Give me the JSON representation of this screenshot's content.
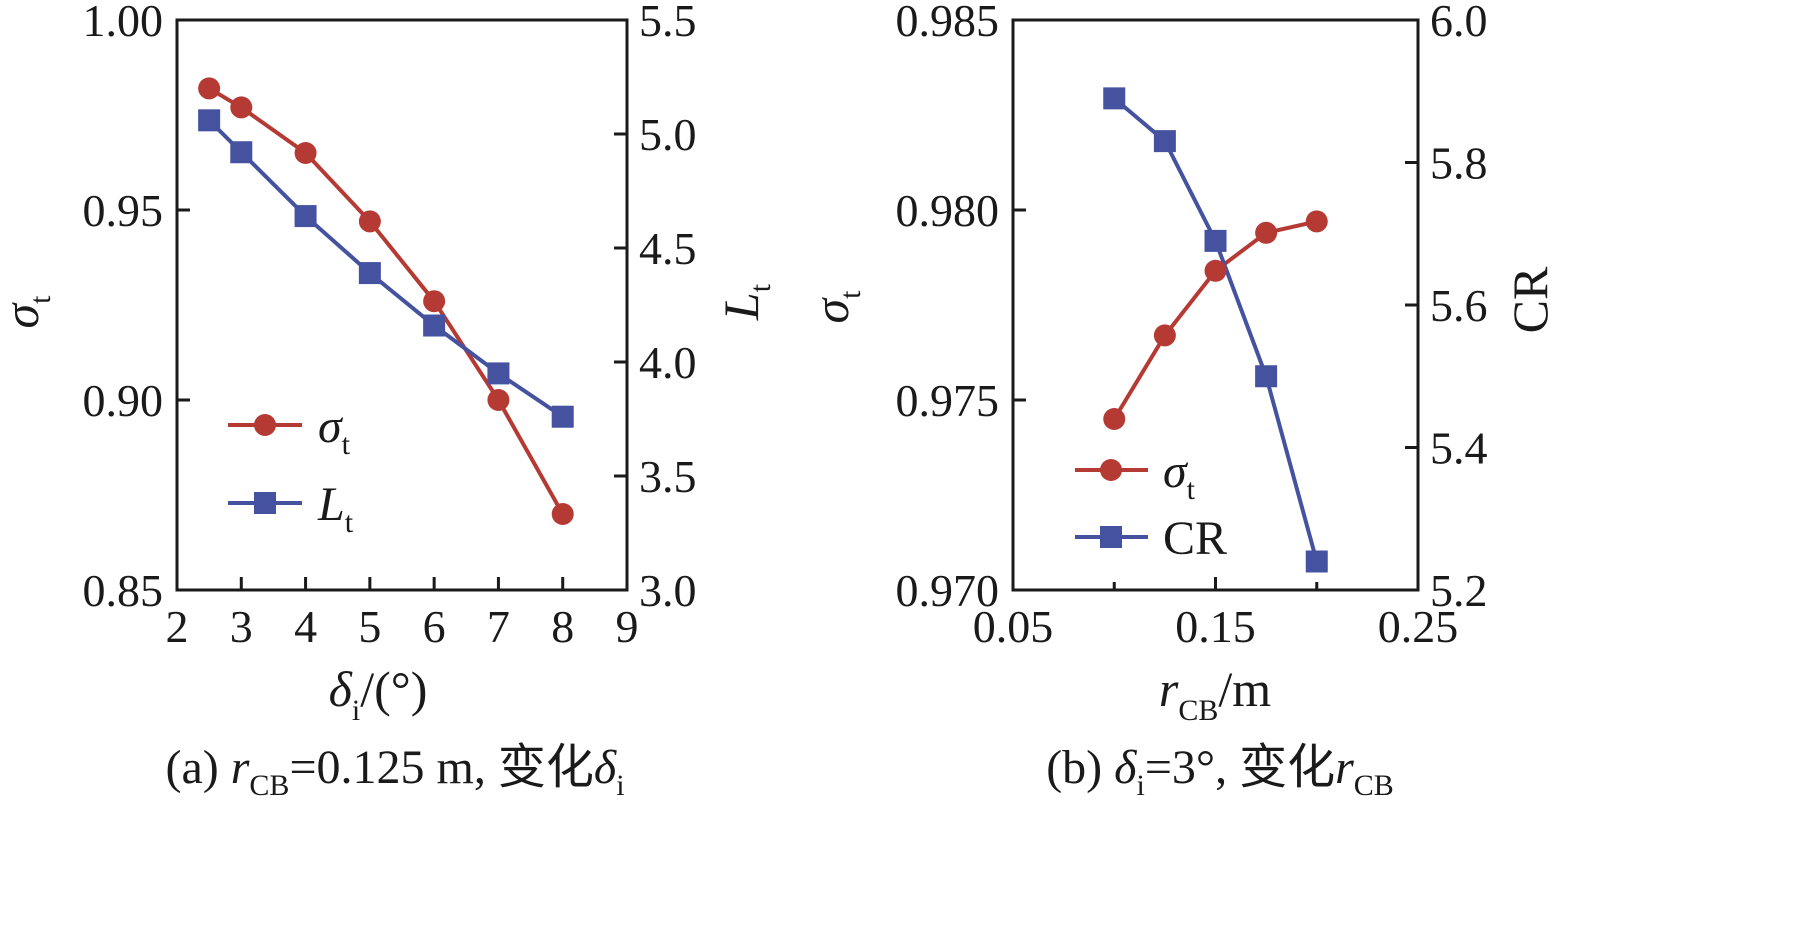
{
  "colors": {
    "red": "#b63a34",
    "blue": "#4452a0",
    "axis": "#1a1a1a"
  },
  "chart_data": [
    {
      "id": "a",
      "type": "line",
      "caption": {
        "prefix": "(a) ",
        "r": "r",
        "r_sub": "CB",
        "eq": "=0.125 m, 变化",
        "delta": "δ",
        "delta_sub": "i"
      },
      "xlabel": {
        "sym": "δ",
        "sub": "i",
        "unit": "/(°)"
      },
      "ylabel_left": {
        "sym": "σ",
        "sub": "t"
      },
      "ylabel_right": {
        "sym": "L",
        "sub": "t"
      },
      "xlim": [
        2,
        9
      ],
      "ylim_left": [
        0.85,
        1.0
      ],
      "ylim_right": [
        3.0,
        5.5
      ],
      "x_ticks": [
        "2",
        "3",
        "4",
        "5",
        "6",
        "7",
        "8",
        "9"
      ],
      "x_tick_values": [
        2,
        3,
        4,
        5,
        6,
        7,
        8,
        9
      ],
      "y_left_ticks": [
        "0.85",
        "0.90",
        "0.95",
        "1.00"
      ],
      "y_left_tick_values": [
        0.85,
        0.9,
        0.95,
        1.0
      ],
      "y_right_ticks": [
        "3.0",
        "3.5",
        "4.0",
        "4.5",
        "5.0",
        "5.5"
      ],
      "y_right_tick_values": [
        3.0,
        3.5,
        4.0,
        4.5,
        5.0,
        5.5
      ],
      "legend": [
        {
          "sym": "σ",
          "sub": "t",
          "marker": "circle"
        },
        {
          "sym": "L",
          "sub": "t",
          "marker": "square"
        }
      ],
      "series": [
        {
          "name": "σt",
          "axis": "left",
          "marker": "circle",
          "color": "#b63a34",
          "x": [
            2.5,
            3,
            4,
            5,
            6,
            7,
            8
          ],
          "values": [
            0.982,
            0.977,
            0.965,
            0.947,
            0.926,
            0.9,
            0.87
          ]
        },
        {
          "name": "Lt",
          "axis": "right",
          "marker": "square",
          "color": "#4452a0",
          "x": [
            2.5,
            3,
            4,
            5,
            6,
            7,
            8
          ],
          "values": [
            5.06,
            4.92,
            4.64,
            4.39,
            4.16,
            3.95,
            3.76
          ]
        }
      ]
    },
    {
      "id": "b",
      "type": "line",
      "caption": {
        "prefix": "(b) ",
        "delta": "δ",
        "delta_sub": "i",
        "eq": "=3°, 变化",
        "r": "r",
        "r_sub": "CB"
      },
      "xlabel": {
        "sym": "r",
        "sub": "CB",
        "unit": "/m"
      },
      "ylabel_left": {
        "sym": "σ",
        "sub": "t"
      },
      "ylabel_right": {
        "sym": "CR",
        "sub": ""
      },
      "xlim": [
        0.05,
        0.25
      ],
      "ylim_left": [
        0.97,
        0.985
      ],
      "ylim_right": [
        5.2,
        6.0
      ],
      "x_ticks": [
        "0.05",
        "0.15",
        "0.25"
      ],
      "x_tick_values": [
        0.05,
        0.15,
        0.25
      ],
      "x_minor_values": [
        0.1,
        0.2
      ],
      "y_left_ticks": [
        "0.970",
        "0.975",
        "0.980",
        "0.985"
      ],
      "y_left_tick_values": [
        0.97,
        0.975,
        0.98,
        0.985
      ],
      "y_right_ticks": [
        "5.2",
        "5.4",
        "5.6",
        "5.8",
        "6.0"
      ],
      "y_right_tick_values": [
        5.2,
        5.4,
        5.6,
        5.8,
        6.0
      ],
      "legend": [
        {
          "sym": "σ",
          "sub": "t",
          "marker": "circle"
        },
        {
          "sym": "CR",
          "sub": "",
          "marker": "square"
        }
      ],
      "series": [
        {
          "name": "σt",
          "axis": "left",
          "marker": "circle",
          "color": "#b63a34",
          "x": [
            0.1,
            0.125,
            0.15,
            0.175,
            0.2
          ],
          "values": [
            0.9745,
            0.9767,
            0.9784,
            0.9794,
            0.9797
          ]
        },
        {
          "name": "CR",
          "axis": "right",
          "marker": "square",
          "color": "#4452a0",
          "x": [
            0.1,
            0.125,
            0.15,
            0.175,
            0.2
          ],
          "values": [
            5.89,
            5.83,
            5.69,
            5.5,
            5.24
          ]
        }
      ]
    }
  ]
}
